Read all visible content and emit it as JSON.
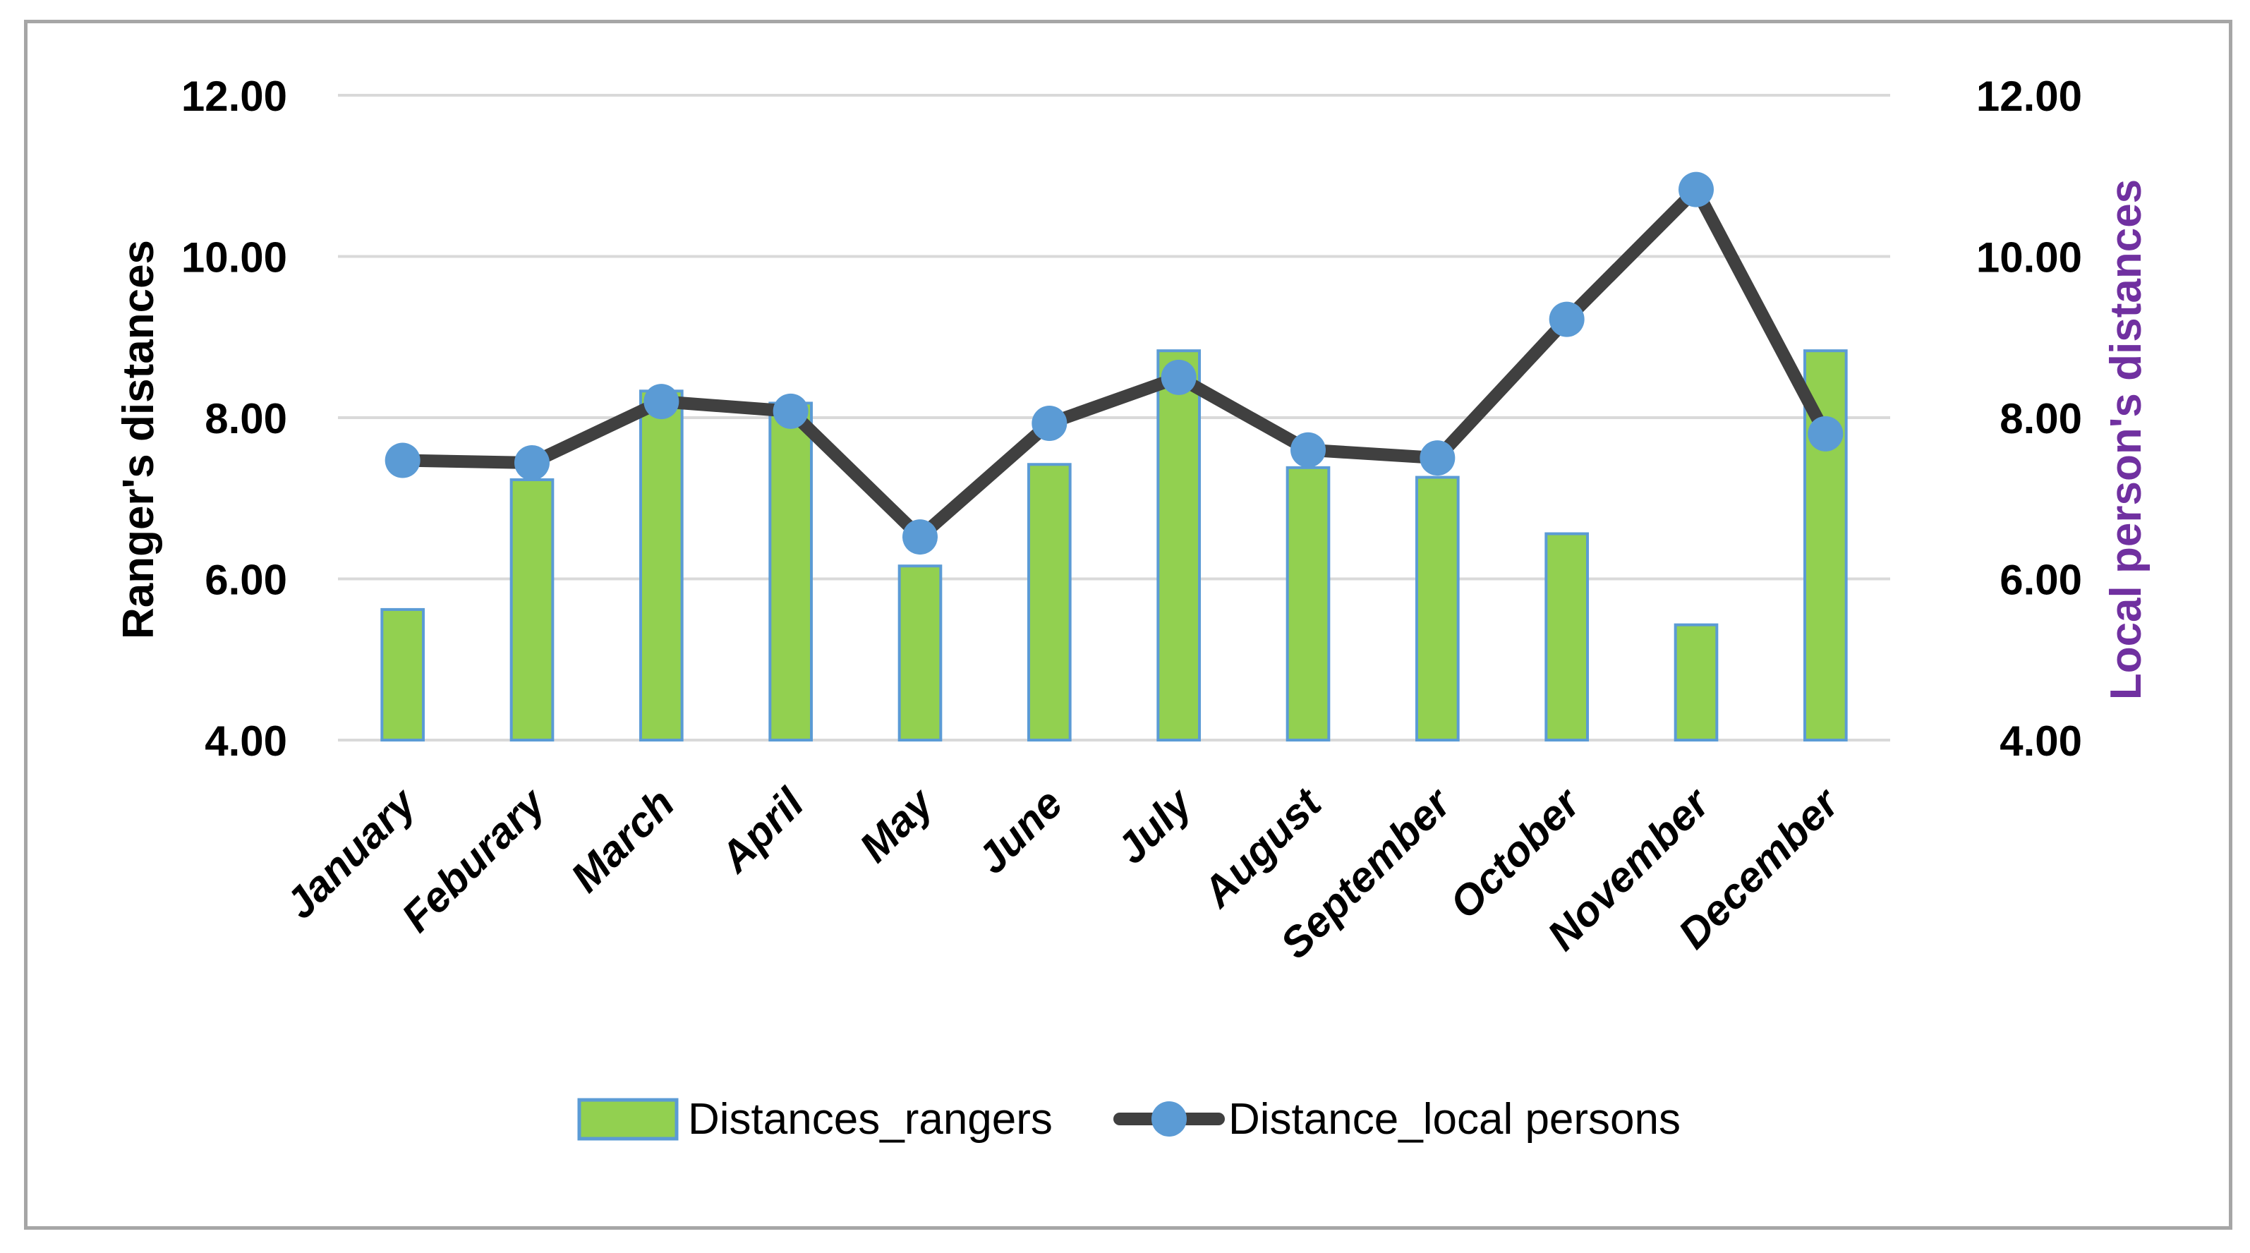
{
  "chart_data": {
    "type": "bar",
    "categories": [
      "January",
      "Feburary",
      "March",
      "April",
      "May",
      "June",
      "July",
      "August",
      "September",
      "October",
      "November",
      "December"
    ],
    "series": [
      {
        "name": "Distances_rangers",
        "type": "bar",
        "axis": "left",
        "values": [
          5.62,
          7.23,
          8.33,
          8.18,
          6.16,
          7.42,
          8.83,
          7.38,
          7.26,
          6.56,
          5.43,
          8.83
        ],
        "color": "#92d050",
        "border_color": "#5b9bd5"
      },
      {
        "name": "Distance_local persons",
        "type": "line",
        "axis": "right",
        "values": [
          7.47,
          7.44,
          8.2,
          8.08,
          6.52,
          7.93,
          8.5,
          7.6,
          7.5,
          9.22,
          10.83,
          7.8
        ],
        "color": "#404040",
        "marker_color": "#5b9bd5"
      }
    ],
    "xlabel": "",
    "ylabel": "Ranger's distances",
    "y2label": "Local person's distances",
    "ylim": [
      4,
      12
    ],
    "y2lim": [
      4,
      12
    ],
    "yticks": [
      "4.00",
      "6.00",
      "8.00",
      "10.00",
      "12.00"
    ],
    "y2ticks": [
      "4.00",
      "6.00",
      "8.00",
      "10.00",
      "12.00"
    ],
    "grid": true,
    "legend": "bottom",
    "colors": {
      "gridline": "#d9d9d9",
      "y2label": "#7030a0",
      "text": "#000000",
      "frame": "#a6a6a6"
    }
  }
}
